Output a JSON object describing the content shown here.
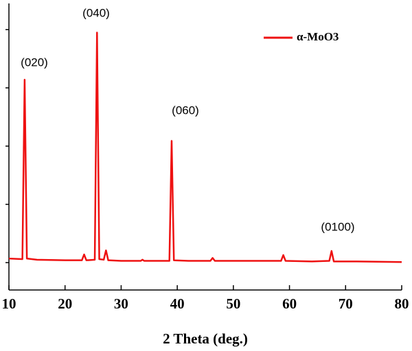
{
  "chart_data": {
    "type": "line",
    "x_label": "2 Theta (deg.)",
    "x": [
      10,
      12.4,
      12.8,
      13.2,
      15,
      20,
      23.0,
      23.4,
      23.8,
      25.3,
      25.7,
      26.1,
      26.9,
      27.3,
      27.7,
      30,
      33.5,
      33.8,
      34.1,
      38.6,
      39.0,
      39.4,
      42,
      45.9,
      46.3,
      46.7,
      52,
      58.5,
      58.9,
      59.3,
      64,
      67.1,
      67.5,
      67.9,
      72,
      80
    ],
    "series": [
      {
        "name": "α-MoO3",
        "color": "#ee1111",
        "values": [
          0.07,
          0.06,
          3.14,
          0.07,
          0.05,
          0.04,
          0.04,
          0.14,
          0.04,
          0.05,
          3.95,
          0.06,
          0.05,
          0.21,
          0.04,
          0.03,
          0.03,
          0.05,
          0.03,
          0.03,
          2.09,
          0.04,
          0.03,
          0.03,
          0.08,
          0.03,
          0.03,
          0.03,
          0.13,
          0.03,
          0.02,
          0.03,
          0.2,
          0.02,
          0.02,
          0.01
        ]
      }
    ],
    "annotations": [
      "(020)",
      "(040)",
      "(060)",
      "(0100)"
    ],
    "xlim": [
      10,
      80
    ],
    "xticks": [
      10,
      20,
      30,
      40,
      50,
      60,
      70,
      80
    ],
    "ylim": [
      -0.47,
      4.45
    ],
    "yticks": [
      0,
      1,
      2,
      3,
      4
    ],
    "legend": "upper right"
  }
}
